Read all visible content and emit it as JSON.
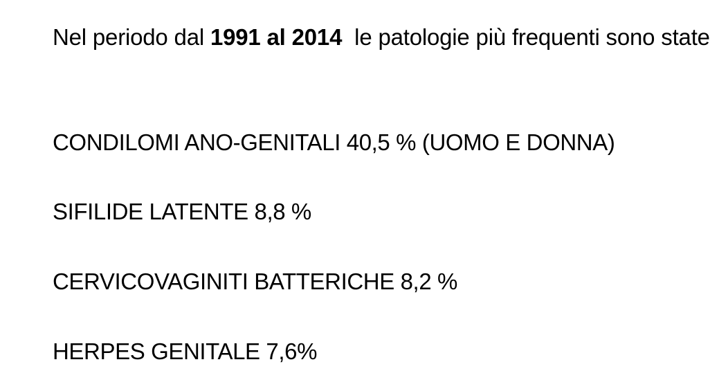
{
  "intro": {
    "prefix": "Nel periodo dal ",
    "bold": "1991 al 2014",
    "suffix": "  le patologie più frequenti sono state"
  },
  "items": [
    "CONDILOMI ANO-GENITALI 40,5 % (UOMO E DONNA)",
    "SIFILIDE LATENTE 8,8 %",
    "CERVICOVAGINITI BATTERICHE 8,2 %",
    "HERPES GENITALE 7,6%"
  ]
}
